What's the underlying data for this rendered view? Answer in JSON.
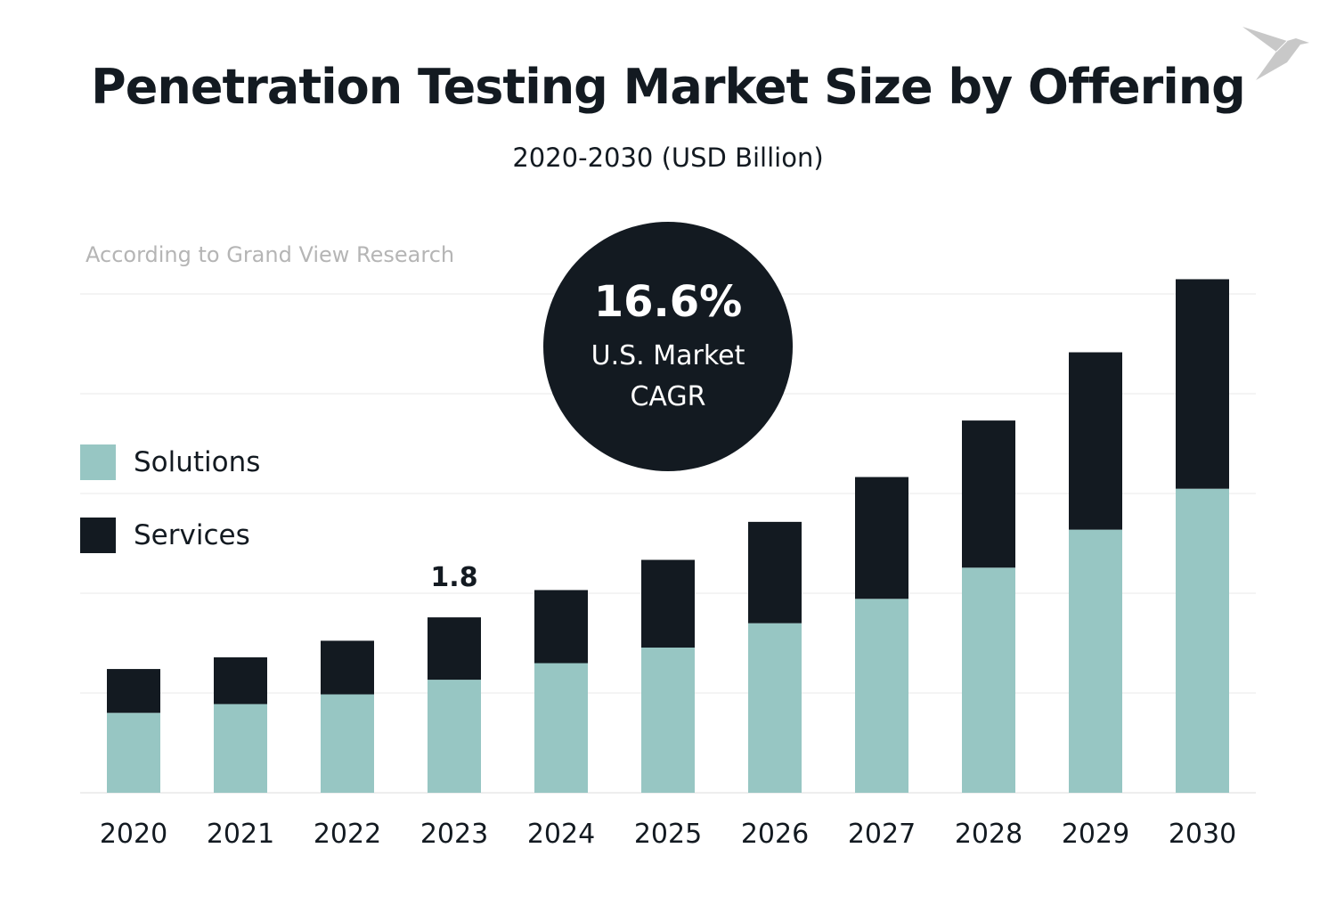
{
  "colors": {
    "solutions": "#97c6c3",
    "services": "#131a21",
    "grid": "#e8e8e8",
    "logo": "#c8c8c8"
  },
  "logo_icon": "origami-bird-icon",
  "source": "According to Grand View Research",
  "cagr": {
    "value": "16.6%",
    "label": "U.S. Market CAGR"
  },
  "chart_data": {
    "type": "bar",
    "stacked": true,
    "title": "Penetration Testing Market Size by Offering",
    "subtitle": "2020-2030 (USD Billion)",
    "categories": [
      "2020",
      "2021",
      "2022",
      "2023",
      "2024",
      "2025",
      "2026",
      "2027",
      "2028",
      "2029",
      "2030"
    ],
    "series": [
      {
        "name": "Solutions",
        "values": [
          0.82,
          0.91,
          1.01,
          1.16,
          1.33,
          1.49,
          1.74,
          1.99,
          2.31,
          2.7,
          3.12
        ]
      },
      {
        "name": "Services",
        "values": [
          0.45,
          0.48,
          0.55,
          0.64,
          0.75,
          0.9,
          1.04,
          1.25,
          1.51,
          1.82,
          2.15
        ]
      }
    ],
    "annotations": [
      {
        "category": "2023",
        "label": "1.8"
      }
    ],
    "ylim": [
      0,
      5.5
    ],
    "grid": true,
    "legend": "left"
  }
}
